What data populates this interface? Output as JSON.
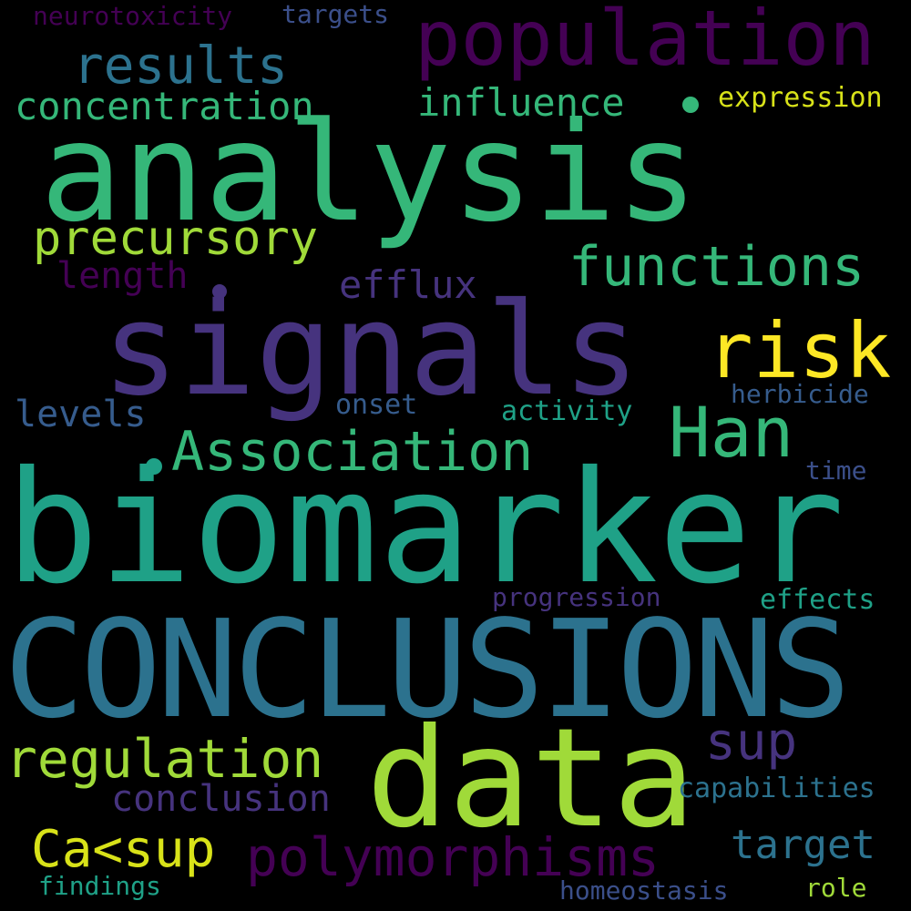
{
  "palette": {
    "background": "#000000",
    "deep_purple": "#440154",
    "purple": "#46337e",
    "indigo": "#3b4f8a",
    "blue": "#365c8d",
    "steel_blue": "#2c728e",
    "teal": "#21918c",
    "green_teal": "#1fa187",
    "green": "#35b779",
    "yellow_green": "#a0da39",
    "yellow": "#d8e219",
    "bright_yellow": "#fde725"
  },
  "words": [
    {
      "text": "analysis",
      "color": "#35b779"
    },
    {
      "text": "biomarker",
      "color": "#1fa187"
    },
    {
      "text": "CONCLUSIONS",
      "color": "#2c728e"
    },
    {
      "text": "signals",
      "color": "#46337e"
    },
    {
      "text": "data",
      "color": "#a0da39"
    },
    {
      "text": "population",
      "color": "#440154"
    },
    {
      "text": "risk",
      "color": "#fde725"
    },
    {
      "text": "Han",
      "color": "#35b779"
    },
    {
      "text": "Association",
      "color": "#35b779"
    },
    {
      "text": "functions",
      "color": "#35b779"
    },
    {
      "text": "results",
      "color": "#2c728e"
    },
    {
      "text": "regulation",
      "color": "#a0da39"
    },
    {
      "text": "polymorphisms",
      "color": "#440154"
    },
    {
      "text": "Ca<sup",
      "color": "#d8e219"
    },
    {
      "text": "precursory",
      "color": "#a0da39"
    },
    {
      "text": "concentration",
      "color": "#35b779"
    },
    {
      "text": "influence",
      "color": "#35b779"
    },
    {
      "text": "sup",
      "color": "#46337e"
    },
    {
      "text": "target",
      "color": "#2c728e"
    },
    {
      "text": "efflux",
      "color": "#46337e"
    },
    {
      "text": "conclusion",
      "color": "#46337e"
    },
    {
      "text": "length",
      "color": "#440154"
    },
    {
      "text": "levels",
      "color": "#365c8d"
    },
    {
      "text": "expression",
      "color": "#d8e219"
    },
    {
      "text": "neurotoxicity",
      "color": "#440154"
    },
    {
      "text": "targets",
      "color": "#3b4f8a"
    },
    {
      "text": "herbicide",
      "color": "#365c8d"
    },
    {
      "text": "activity",
      "color": "#1fa187"
    },
    {
      "text": "onset",
      "color": "#365c8d"
    },
    {
      "text": "capabilities",
      "color": "#2c728e"
    },
    {
      "text": "effects",
      "color": "#1fa187"
    },
    {
      "text": "progression",
      "color": "#46337e"
    },
    {
      "text": "time",
      "color": "#3b4f8a"
    },
    {
      "text": "findings",
      "color": "#1fa187"
    },
    {
      "text": "homeostasis",
      "color": "#3b4f8a"
    },
    {
      "text": "role",
      "color": "#a0da39"
    }
  ],
  "dots": [
    {
      "color": "#35b779"
    },
    {
      "color": "#46337e"
    },
    {
      "color": "#1fa187"
    }
  ]
}
